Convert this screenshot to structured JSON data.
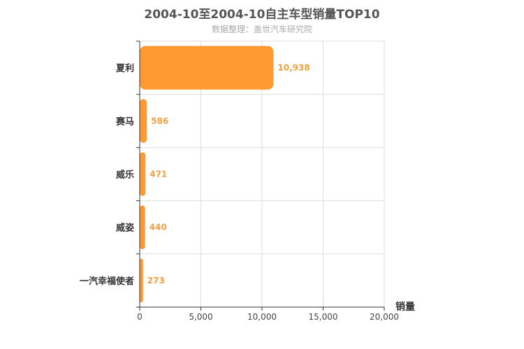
{
  "chart_data": {
    "type": "bar",
    "orientation": "horizontal",
    "title": "2004-10至2004-10自主车型销量TOP10",
    "subtitle": "数据整理：盖世汽车研究院",
    "categories": [
      "夏利",
      "赛马",
      "威乐",
      "威姿",
      "一汽幸福使者"
    ],
    "values": [
      10938,
      586,
      471,
      440,
      273
    ],
    "data_labels": [
      "10,938",
      "586",
      "471",
      "440",
      "273"
    ],
    "xlabel": "销量",
    "xlim": [
      0,
      20000
    ],
    "x_ticks": [
      0,
      5000,
      10000,
      15000,
      20000
    ],
    "x_tick_labels": [
      "0",
      "5,000",
      "10,000",
      "15,000",
      "20,000"
    ],
    "grid": true,
    "colors": {
      "bar": "#ff9a33",
      "label": "#f0a040",
      "grid": "#dddddd",
      "axis": "#333333"
    }
  }
}
